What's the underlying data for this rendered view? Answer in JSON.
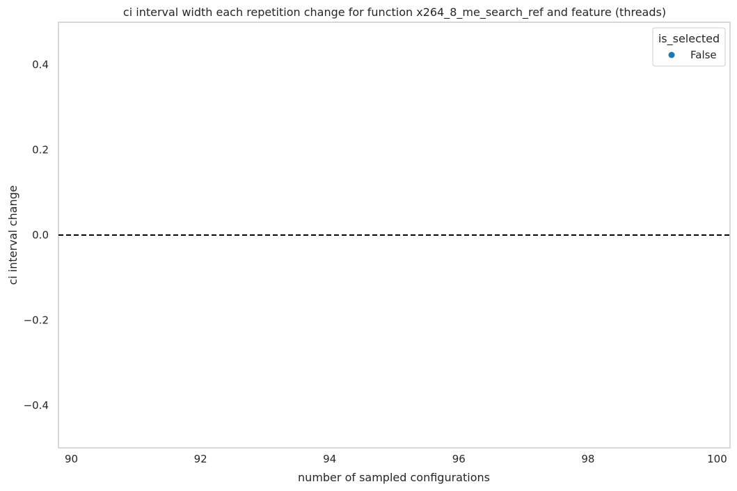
{
  "chart_data": {
    "type": "scatter",
    "title": "ci interval width each repetition change for function x264_8_me_search_ref and feature (threads)",
    "xlabel": "number of sampled configurations",
    "ylabel": "ci interval change",
    "xlim": [
      89.8,
      100.2
    ],
    "ylim": [
      -0.5,
      0.5
    ],
    "xticks": [
      90,
      92,
      94,
      96,
      98,
      100
    ],
    "yticks": [
      -0.4,
      -0.2,
      0.0,
      0.2,
      0.4
    ],
    "ytick_labels": [
      "−0.4",
      "−0.2",
      "0.0",
      "0.2",
      "0.4"
    ],
    "grid": false,
    "reference_line": {
      "y": 0.0,
      "style": "dashed",
      "color": "#000000"
    },
    "legend": {
      "title": "is_selected",
      "placement": "top-right",
      "entries": [
        {
          "label": "False",
          "color": "#1f77b4"
        }
      ]
    },
    "series": [
      {
        "name": "False",
        "color": "#1f77b4",
        "points": []
      }
    ]
  }
}
